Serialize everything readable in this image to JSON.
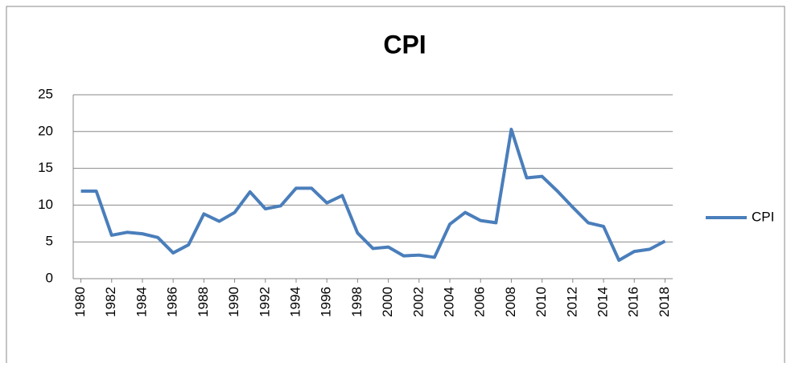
{
  "chart_data": {
    "type": "line",
    "title": "CPI",
    "x": [
      1980,
      1981,
      1982,
      1983,
      1984,
      1985,
      1986,
      1987,
      1988,
      1989,
      1990,
      1991,
      1992,
      1993,
      1994,
      1995,
      1996,
      1997,
      1998,
      1999,
      2000,
      2001,
      2002,
      2003,
      2004,
      2005,
      2006,
      2007,
      2008,
      2009,
      2010,
      2011,
      2012,
      2013,
      2014,
      2015,
      2016,
      2017,
      2018
    ],
    "series": [
      {
        "name": "CPI",
        "color": "#4a7ebb",
        "values": [
          11.9,
          11.9,
          5.9,
          6.3,
          6.1,
          5.6,
          3.5,
          4.6,
          8.8,
          7.8,
          9.0,
          11.8,
          9.5,
          9.9,
          12.3,
          12.3,
          10.3,
          11.3,
          6.2,
          4.1,
          4.3,
          3.1,
          3.2,
          2.9,
          7.4,
          9.0,
          7.9,
          7.6,
          20.3,
          13.7,
          13.9,
          11.9,
          9.7,
          7.6,
          7.1,
          2.5,
          3.7,
          4.0,
          5.1
        ]
      }
    ],
    "xlim": [
      1979.5,
      2018.5
    ],
    "xticks": [
      1980,
      1982,
      1984,
      1986,
      1988,
      1990,
      1992,
      1994,
      1996,
      1998,
      2000,
      2002,
      2004,
      2006,
      2008,
      2010,
      2012,
      2014,
      2016,
      2018
    ],
    "ylim": [
      0,
      25
    ],
    "yticks": [
      0,
      5,
      10,
      15,
      20,
      25
    ],
    "grid": true,
    "legend": "right"
  }
}
